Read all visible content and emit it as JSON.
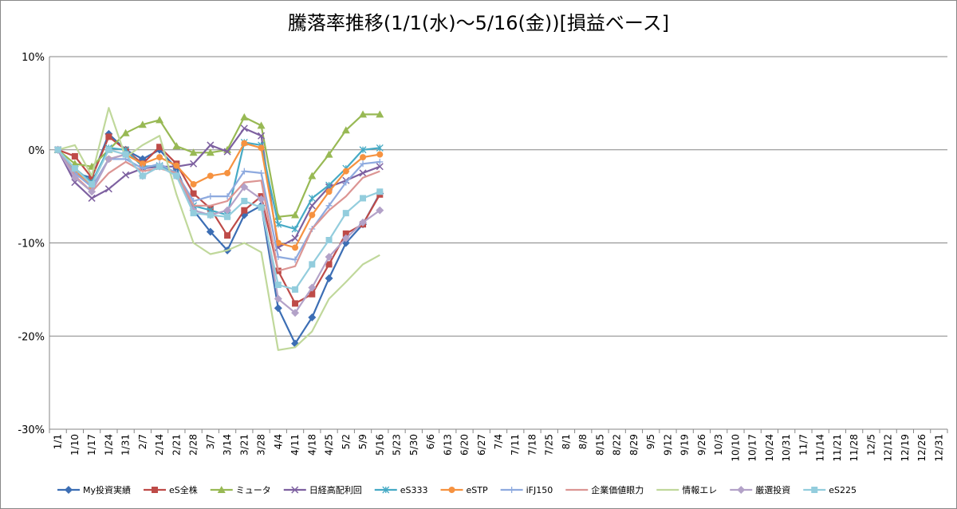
{
  "chart_data": {
    "type": "line",
    "title": "騰落率推移(1/1(水)～5/16(金))[損益ベース]",
    "categories": [
      "1/1",
      "1/10",
      "1/17",
      "1/24",
      "1/31",
      "2/7",
      "2/14",
      "2/21",
      "2/28",
      "3/7",
      "3/14",
      "3/21",
      "3/28",
      "4/4",
      "4/11",
      "4/18",
      "4/25",
      "5/2",
      "5/9",
      "5/16",
      "5/23",
      "5/30",
      "6/6",
      "6/13",
      "6/20",
      "6/27",
      "7/4",
      "7/11",
      "7/18",
      "7/25",
      "8/1",
      "8/8",
      "8/15",
      "8/22",
      "8/29",
      "9/5",
      "9/12",
      "9/19",
      "9/26",
      "10/3",
      "10/10",
      "10/17",
      "10/24",
      "10/31",
      "11/7",
      "11/14",
      "11/21",
      "11/28",
      "12/5",
      "12/12",
      "12/19",
      "12/26",
      "12/31"
    ],
    "ylim": [
      -30,
      10
    ],
    "yticks": [
      {
        "value": -30,
        "label": "-30%"
      },
      {
        "value": -20,
        "label": "-20%"
      },
      {
        "value": -10,
        "label": "-10%"
      },
      {
        "value": 0,
        "label": "0%"
      },
      {
        "value": 10,
        "label": "10%"
      }
    ],
    "grid": true,
    "legend": "bottom",
    "series": [
      {
        "name": "My投資実績",
        "color": "#3c6eb4",
        "marker": "diamond",
        "values": [
          0,
          -2.5,
          -3,
          1.7,
          0,
          -1,
          0,
          -2,
          -6.5,
          -8.8,
          -10.8,
          -7,
          -6,
          -17,
          -20.8,
          -18,
          -13.8,
          -10,
          -8,
          -4.7,
          null,
          null,
          null,
          null,
          null,
          null,
          null,
          null,
          null,
          null,
          null,
          null,
          null,
          null,
          null,
          null,
          null,
          null,
          null,
          null,
          null,
          null,
          null,
          null,
          null,
          null,
          null,
          null,
          null,
          null,
          null,
          null,
          null
        ]
      },
      {
        "name": "eS全株",
        "color": "#be4b48",
        "marker": "square",
        "values": [
          0,
          -0.7,
          -3,
          1.4,
          0,
          -1.5,
          0.3,
          -1.5,
          -4.7,
          -6.3,
          -9.2,
          -6.5,
          -5,
          -13,
          -16.5,
          -15.5,
          -12.3,
          -9,
          -8,
          -4.8,
          null,
          null,
          null,
          null,
          null,
          null,
          null,
          null,
          null,
          null,
          null,
          null,
          null,
          null,
          null,
          null,
          null,
          null,
          null,
          null,
          null,
          null,
          null,
          null,
          null,
          null,
          null,
          null,
          null,
          null,
          null,
          null,
          null
        ]
      },
      {
        "name": "ミュータ",
        "color": "#98b954",
        "marker": "triangle",
        "values": [
          0,
          -1.5,
          -1.8,
          0,
          1.8,
          2.7,
          3.2,
          0.4,
          -0.3,
          -0.3,
          0,
          3.5,
          2.6,
          -7.2,
          -7,
          -2.8,
          -0.5,
          2.1,
          3.8,
          3.8,
          null,
          null,
          null,
          null,
          null,
          null,
          null,
          null,
          null,
          null,
          null,
          null,
          null,
          null,
          null,
          null,
          null,
          null,
          null,
          null,
          null,
          null,
          null,
          null,
          null,
          null,
          null,
          null,
          null,
          null,
          null,
          null,
          null
        ]
      },
      {
        "name": "日経高配利回",
        "color": "#7d60a0",
        "marker": "x",
        "values": [
          0,
          -3.5,
          -5.2,
          -4.2,
          -2.7,
          -2,
          -1.8,
          -1.8,
          -1.5,
          0.5,
          -0.2,
          2.3,
          1.5,
          -10.5,
          -9.5,
          -6,
          -4,
          -3.3,
          -2.5,
          -1.8,
          null,
          null,
          null,
          null,
          null,
          null,
          null,
          null,
          null,
          null,
          null,
          null,
          null,
          null,
          null,
          null,
          null,
          null,
          null,
          null,
          null,
          null,
          null,
          null,
          null,
          null,
          null,
          null,
          null,
          null,
          null,
          null,
          null
        ]
      },
      {
        "name": "eS333",
        "color": "#46aac5",
        "marker": "star",
        "values": [
          0,
          -2,
          -3.5,
          0.2,
          0,
          -1.8,
          -1.7,
          -2.5,
          -6,
          -6.5,
          -7,
          0.8,
          0.5,
          -8,
          -8.5,
          -5.2,
          -3.8,
          -2,
          0,
          0.2,
          null,
          null,
          null,
          null,
          null,
          null,
          null,
          null,
          null,
          null,
          null,
          null,
          null,
          null,
          null,
          null,
          null,
          null,
          null,
          null,
          null,
          null,
          null,
          null,
          null,
          null,
          null,
          null,
          null,
          null,
          null,
          null,
          null
        ]
      },
      {
        "name": "eSTP",
        "color": "#f69240",
        "marker": "circle",
        "values": [
          0,
          -2.2,
          -4,
          -1,
          -0.5,
          -1.5,
          -0.8,
          -1.7,
          -3.7,
          -2.8,
          -2.5,
          0.7,
          0.2,
          -10,
          -10.5,
          -7,
          -4.5,
          -2.3,
          -0.8,
          -0.5,
          null,
          null,
          null,
          null,
          null,
          null,
          null,
          null,
          null,
          null,
          null,
          null,
          null,
          null,
          null,
          null,
          null,
          null,
          null,
          null,
          null,
          null,
          null,
          null,
          null,
          null,
          null,
          null,
          null,
          null,
          null,
          null,
          null
        ]
      },
      {
        "name": "iFJ150",
        "color": "#8eaadf",
        "marker": "plus",
        "values": [
          0,
          -2.5,
          -4,
          -1,
          -1,
          -2,
          -1.5,
          -2.5,
          -5.5,
          -5,
          -5,
          -2.3,
          -2.5,
          -11.5,
          -11.8,
          -8.5,
          -6,
          -3.5,
          -1.5,
          -1.3,
          null,
          null,
          null,
          null,
          null,
          null,
          null,
          null,
          null,
          null,
          null,
          null,
          null,
          null,
          null,
          null,
          null,
          null,
          null,
          null,
          null,
          null,
          null,
          null,
          null,
          null,
          null,
          null,
          null,
          null,
          null,
          null,
          null
        ]
      },
      {
        "name": "企業価値眼力",
        "color": "#dc9593",
        "marker": "none",
        "values": [
          0,
          -2.8,
          -4.5,
          -2.5,
          -1.3,
          -2.3,
          -2,
          -2.5,
          -6,
          -6,
          -5.5,
          -3.5,
          -3.3,
          -13,
          -12.5,
          -8.5,
          -6.5,
          -5,
          -3,
          -2.3,
          null,
          null,
          null,
          null,
          null,
          null,
          null,
          null,
          null,
          null,
          null,
          null,
          null,
          null,
          null,
          null,
          null,
          null,
          null,
          null,
          null,
          null,
          null,
          null,
          null,
          null,
          null,
          null,
          null,
          null,
          null,
          null,
          null
        ]
      },
      {
        "name": "情報エレ",
        "color": "#c0d89b",
        "marker": "none",
        "values": [
          0,
          0.5,
          -2.8,
          4.5,
          -0.8,
          0.5,
          1.5,
          -4.8,
          -10,
          -11.2,
          -10.8,
          -10,
          -11,
          -21.5,
          -21.2,
          -19.5,
          -16,
          -14.2,
          -12.3,
          -11.3,
          null,
          null,
          null,
          null,
          null,
          null,
          null,
          null,
          null,
          null,
          null,
          null,
          null,
          null,
          null,
          null,
          null,
          null,
          null,
          null,
          null,
          null,
          null,
          null,
          null,
          null,
          null,
          null,
          null,
          null,
          null,
          null,
          null
        ]
      },
      {
        "name": "厳選投資",
        "color": "#b3a2c8",
        "marker": "diamond",
        "values": [
          0,
          -3,
          -4.5,
          -1,
          -0.5,
          -2.8,
          -1.8,
          -2.8,
          -6.5,
          -7,
          -6.5,
          -4,
          -5.3,
          -16,
          -17.5,
          -14.8,
          -11.5,
          -9.5,
          -7.8,
          -6.5,
          null,
          null,
          null,
          null,
          null,
          null,
          null,
          null,
          null,
          null,
          null,
          null,
          null,
          null,
          null,
          null,
          null,
          null,
          null,
          null,
          null,
          null,
          null,
          null,
          null,
          null,
          null,
          null,
          null,
          null,
          null,
          null,
          null
        ]
      },
      {
        "name": "eS225",
        "color": "#93cddd",
        "marker": "square",
        "values": [
          0,
          -2,
          -3.7,
          0,
          -0.5,
          -2.8,
          -1.8,
          -2.8,
          -6.8,
          -7,
          -7.2,
          -5.5,
          -6.2,
          -14.5,
          -15,
          -12.3,
          -9.7,
          -6.8,
          -5.2,
          -4.5,
          null,
          null,
          null,
          null,
          null,
          null,
          null,
          null,
          null,
          null,
          null,
          null,
          null,
          null,
          null,
          null,
          null,
          null,
          null,
          null,
          null,
          null,
          null,
          null,
          null,
          null,
          null,
          null,
          null,
          null,
          null,
          null,
          null
        ]
      }
    ]
  }
}
